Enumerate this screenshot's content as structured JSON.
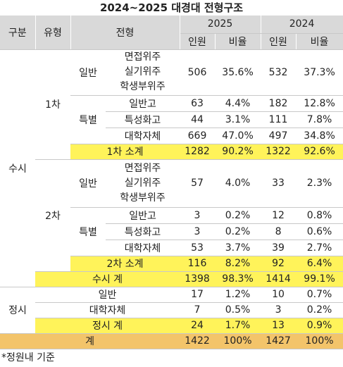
{
  "title": "2024~2025 대경대 전형구조",
  "header": {
    "division": "구분",
    "type": "유형",
    "admission": "전형",
    "years": [
      {
        "year": "2025",
        "count": "인원",
        "ratio": "비율"
      },
      {
        "year": "2024",
        "count": "인원",
        "ratio": "비율"
      }
    ]
  },
  "susi": {
    "label": "수시",
    "rounds": [
      {
        "label": "1차",
        "general": {
          "label": "일반",
          "methods": [
            "면접위주",
            "실기위주",
            "학생부위주"
          ],
          "values": [
            "506",
            "35.6%",
            "532",
            "37.3%"
          ]
        },
        "special": {
          "label": "특별",
          "items": [
            {
              "label": "일반고",
              "values": [
                "63",
                "4.4%",
                "182",
                "12.8%"
              ]
            },
            {
              "label": "특성화고",
              "values": [
                "44",
                "3.1%",
                "111",
                "7.8%"
              ]
            },
            {
              "label": "대학자체",
              "values": [
                "669",
                "47.0%",
                "497",
                "34.8%"
              ]
            }
          ]
        },
        "subtotal": {
          "label": "1차 소계",
          "values": [
            "1282",
            "90.2%",
            "1322",
            "92.6%"
          ]
        }
      },
      {
        "label": "2차",
        "general": {
          "label": "일반",
          "methods": [
            "면접위주",
            "실기위주",
            "학생부위주"
          ],
          "values": [
            "57",
            "4.0%",
            "33",
            "2.3%"
          ]
        },
        "special": {
          "label": "특별",
          "items": [
            {
              "label": "일반고",
              "values": [
                "3",
                "0.2%",
                "12",
                "0.8%"
              ]
            },
            {
              "label": "특성화고",
              "values": [
                "3",
                "0.2%",
                "8",
                "0.6%"
              ]
            },
            {
              "label": "대학자체",
              "values": [
                "53",
                "3.7%",
                "39",
                "2.7%"
              ]
            }
          ]
        },
        "subtotal": {
          "label": "2차 소계",
          "values": [
            "116",
            "8.2%",
            "92",
            "6.4%"
          ]
        }
      }
    ],
    "total": {
      "label": "수시 계",
      "values": [
        "1398",
        "98.3%",
        "1414",
        "99.1%"
      ]
    }
  },
  "jeongsi": {
    "label": "정시",
    "items": [
      {
        "label": "일반",
        "values": [
          "17",
          "1.2%",
          "10",
          "0.7%"
        ]
      },
      {
        "label": "대학자체",
        "values": [
          "7",
          "0.5%",
          "3",
          "0.2%"
        ]
      }
    ],
    "total": {
      "label": "정시 계",
      "values": [
        "24",
        "1.7%",
        "13",
        "0.9%"
      ]
    }
  },
  "grand_total": {
    "label": "계",
    "values": [
      "1422",
      "100%",
      "1427",
      "100%"
    ]
  },
  "footnote": "*정원내 기준"
}
